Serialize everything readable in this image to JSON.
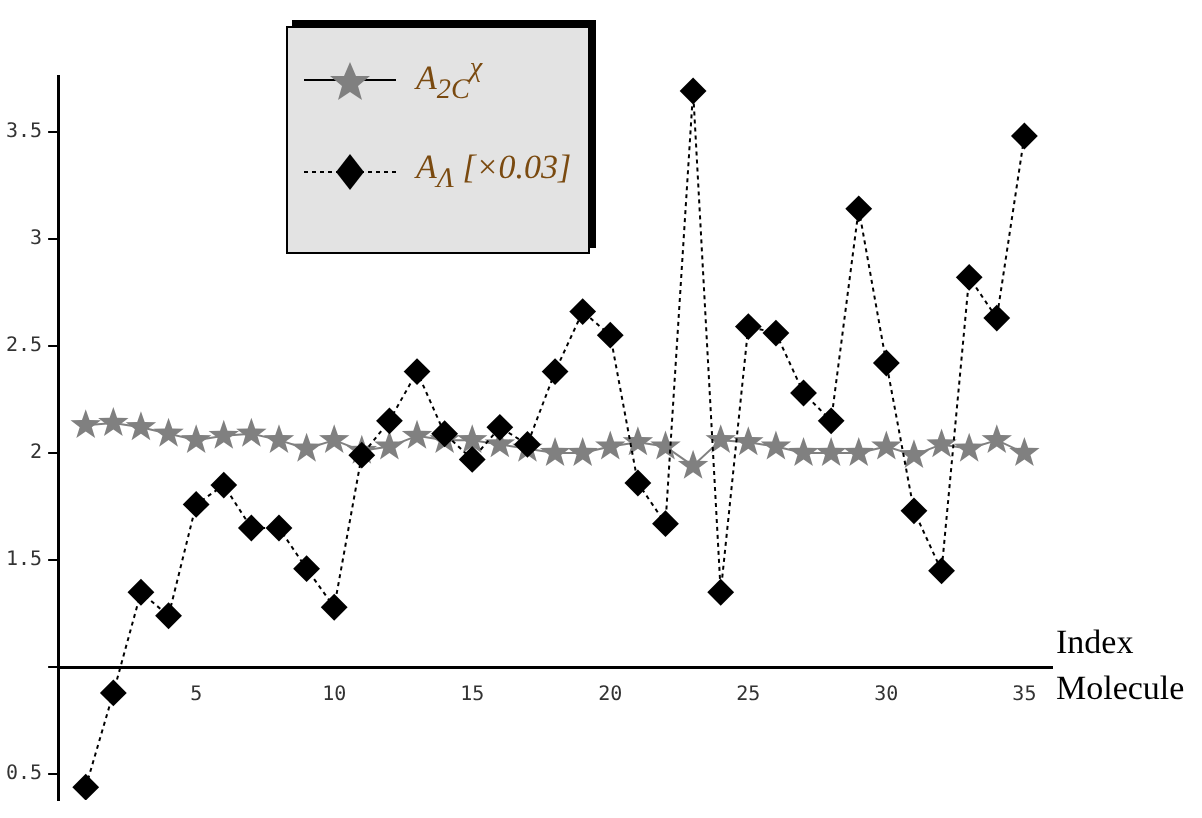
{
  "chart_data": {
    "type": "line",
    "xlabel": "Index Molecule",
    "x": [
      1,
      2,
      3,
      4,
      5,
      6,
      7,
      8,
      9,
      10,
      11,
      12,
      13,
      14,
      15,
      16,
      17,
      18,
      19,
      20,
      21,
      22,
      23,
      24,
      25,
      26,
      27,
      28,
      29,
      30,
      31,
      32,
      33,
      34,
      35
    ],
    "xlim": [
      0,
      36
    ],
    "xticks": [
      5,
      10,
      15,
      20,
      25,
      30,
      35
    ],
    "ylim": [
      0.38,
      3.76
    ],
    "yticks": [
      0.5,
      {
        "value": 1,
        "label": null
      },
      1.5,
      2,
      2.5,
      3,
      3.5
    ],
    "grid": false,
    "legend": "top",
    "series": [
      {
        "name": "A$_{2C}$$^{χ}$",
        "color": "#808080",
        "marker": "star",
        "line_style": "solid",
        "values": [
          2.13,
          2.14,
          2.12,
          2.09,
          2.06,
          2.08,
          2.09,
          2.06,
          2.02,
          2.06,
          2.01,
          2.03,
          2.08,
          2.06,
          2.06,
          2.04,
          2.02,
          2.0,
          2.0,
          2.03,
          2.05,
          2.03,
          1.94,
          2.06,
          2.05,
          2.03,
          2.0,
          2.0,
          2.0,
          2.03,
          1.99,
          2.04,
          2.02,
          2.06,
          2.0
        ]
      },
      {
        "name": "A$_{Λ}$ [×0.03]",
        "color": "#000000",
        "marker": "diamond",
        "line_style": "dotted",
        "values": [
          0.44,
          0.88,
          1.35,
          1.24,
          1.76,
          1.85,
          1.65,
          1.65,
          1.46,
          1.28,
          1.99,
          2.15,
          2.38,
          2.09,
          1.97,
          2.12,
          2.04,
          2.38,
          2.66,
          2.55,
          1.86,
          1.67,
          3.69,
          1.35,
          2.59,
          2.56,
          2.28,
          2.15,
          3.14,
          2.42,
          1.73,
          1.45,
          2.82,
          2.63,
          3.48
        ]
      }
    ]
  }
}
